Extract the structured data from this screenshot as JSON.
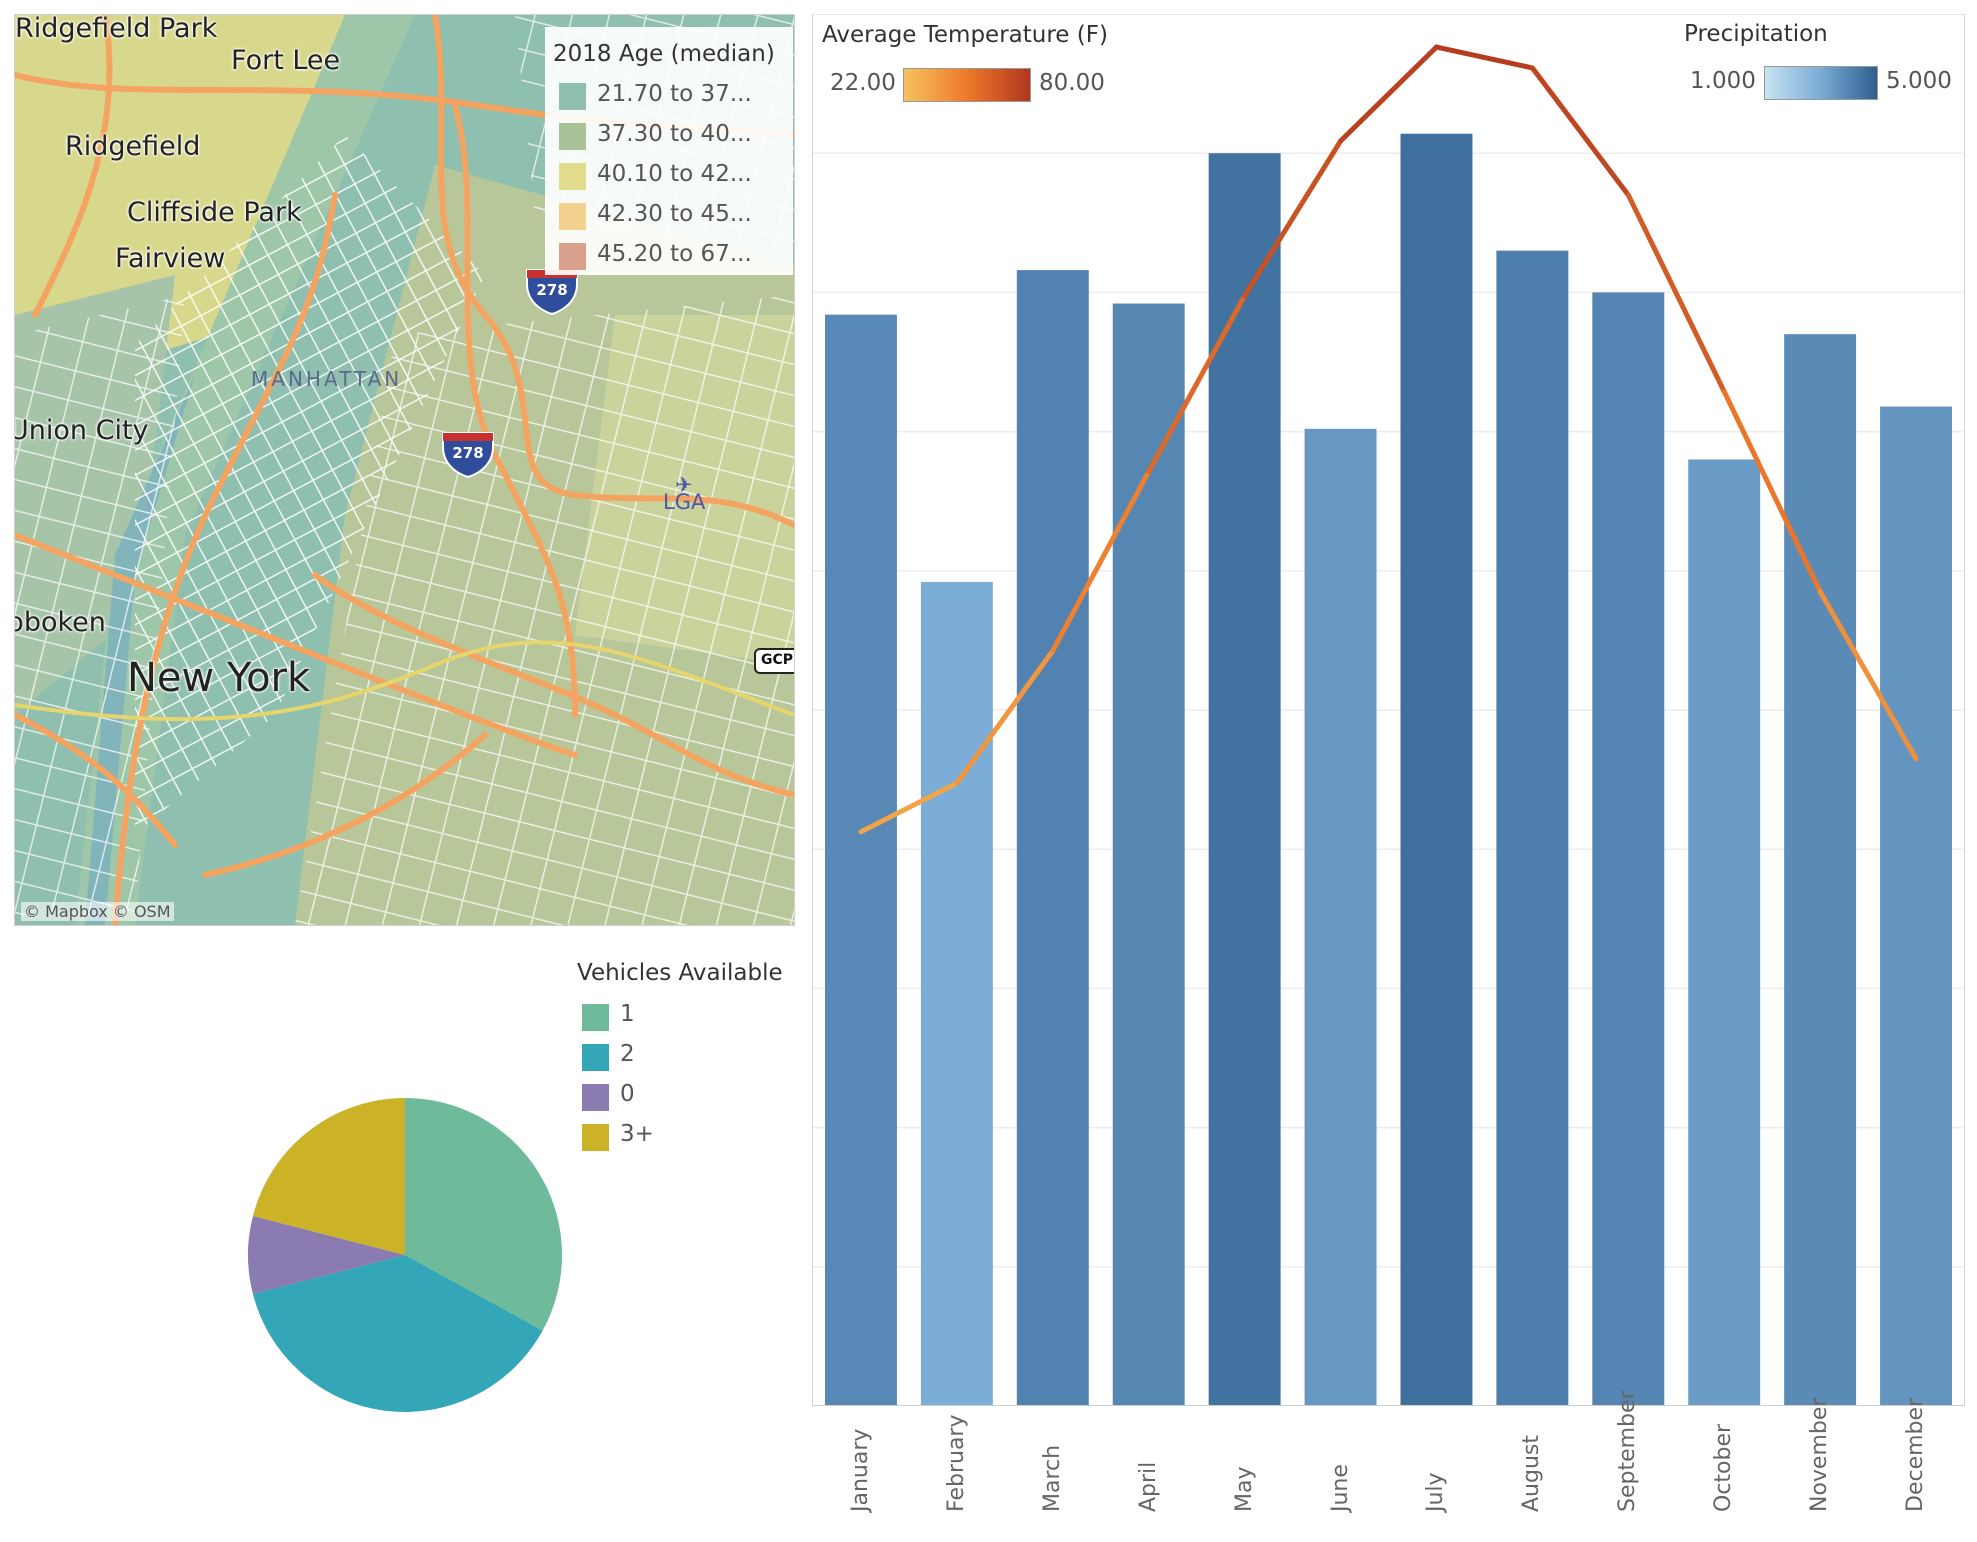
{
  "map": {
    "places": {
      "ridgefield_park": "Ridgefield Park",
      "fort_lee": "Fort Lee",
      "ridgefield": "Ridgefield",
      "cliffside_park": "Cliffside Park",
      "fairview": "Fairview",
      "manhattan": "MANHATTAN",
      "union_city": "Union City",
      "hoboken": "Hoboken",
      "new_york": "New York",
      "lga": "LGA"
    },
    "shields": {
      "i278_a": "278",
      "i278_b": "278",
      "gcp": "GCP"
    },
    "attribution": "© Mapbox  © OSM",
    "legend": {
      "title": "2018 Age (median)",
      "items": [
        {
          "label": "21.70 to 37...",
          "color": "#8fbfae"
        },
        {
          "label": "37.30 to 40...",
          "color": "#a8c398"
        },
        {
          "label": "40.10 to 42...",
          "color": "#e0dc8c"
        },
        {
          "label": "42.30 to 45...",
          "color": "#f2d08e"
        },
        {
          "label": "45.20 to 67...",
          "color": "#d9a08c"
        }
      ]
    }
  },
  "pie": {
    "legend_title": "Vehicles Available",
    "slices": [
      {
        "label": "1",
        "value": 33,
        "color": "#6fba9a"
      },
      {
        "label": "2",
        "value": 38,
        "color": "#33a6b8"
      },
      {
        "label": "0",
        "value": 8,
        "color": "#8a7bb0"
      },
      {
        "label": "3+",
        "value": 21,
        "color": "#cbb227"
      }
    ]
  },
  "chart_data": {
    "type": "bar",
    "categories": [
      "January",
      "February",
      "March",
      "April",
      "May",
      "June",
      "July",
      "August",
      "September",
      "October",
      "November",
      "December"
    ],
    "series": [
      {
        "name": "Precipitation",
        "type": "bar",
        "values": [
          3.92,
          2.96,
          4.08,
          3.96,
          4.5,
          3.51,
          4.57,
          4.15,
          4.0,
          3.4,
          3.85,
          3.59
        ]
      },
      {
        "name": "Average Temperature (F)",
        "type": "line",
        "values": [
          33.0,
          35.8,
          43.4,
          53.7,
          63.8,
          72.7,
          78.1,
          76.9,
          69.6,
          58.3,
          46.8,
          37.2
        ]
      }
    ],
    "precip_color_range": [
      1.0,
      5.0
    ],
    "temp_color_range": [
      22.0,
      80.0
    ],
    "y_range_bars": [
      0,
      5
    ],
    "y_range_line": [
      0,
      80
    ],
    "grid": true,
    "legends": {
      "temperature": {
        "title": "Average Temperature (F)",
        "min": "22.00",
        "max": "80.00"
      },
      "precipitation": {
        "title": "Precipitation",
        "min": "1.000",
        "max": "5.000"
      }
    }
  }
}
